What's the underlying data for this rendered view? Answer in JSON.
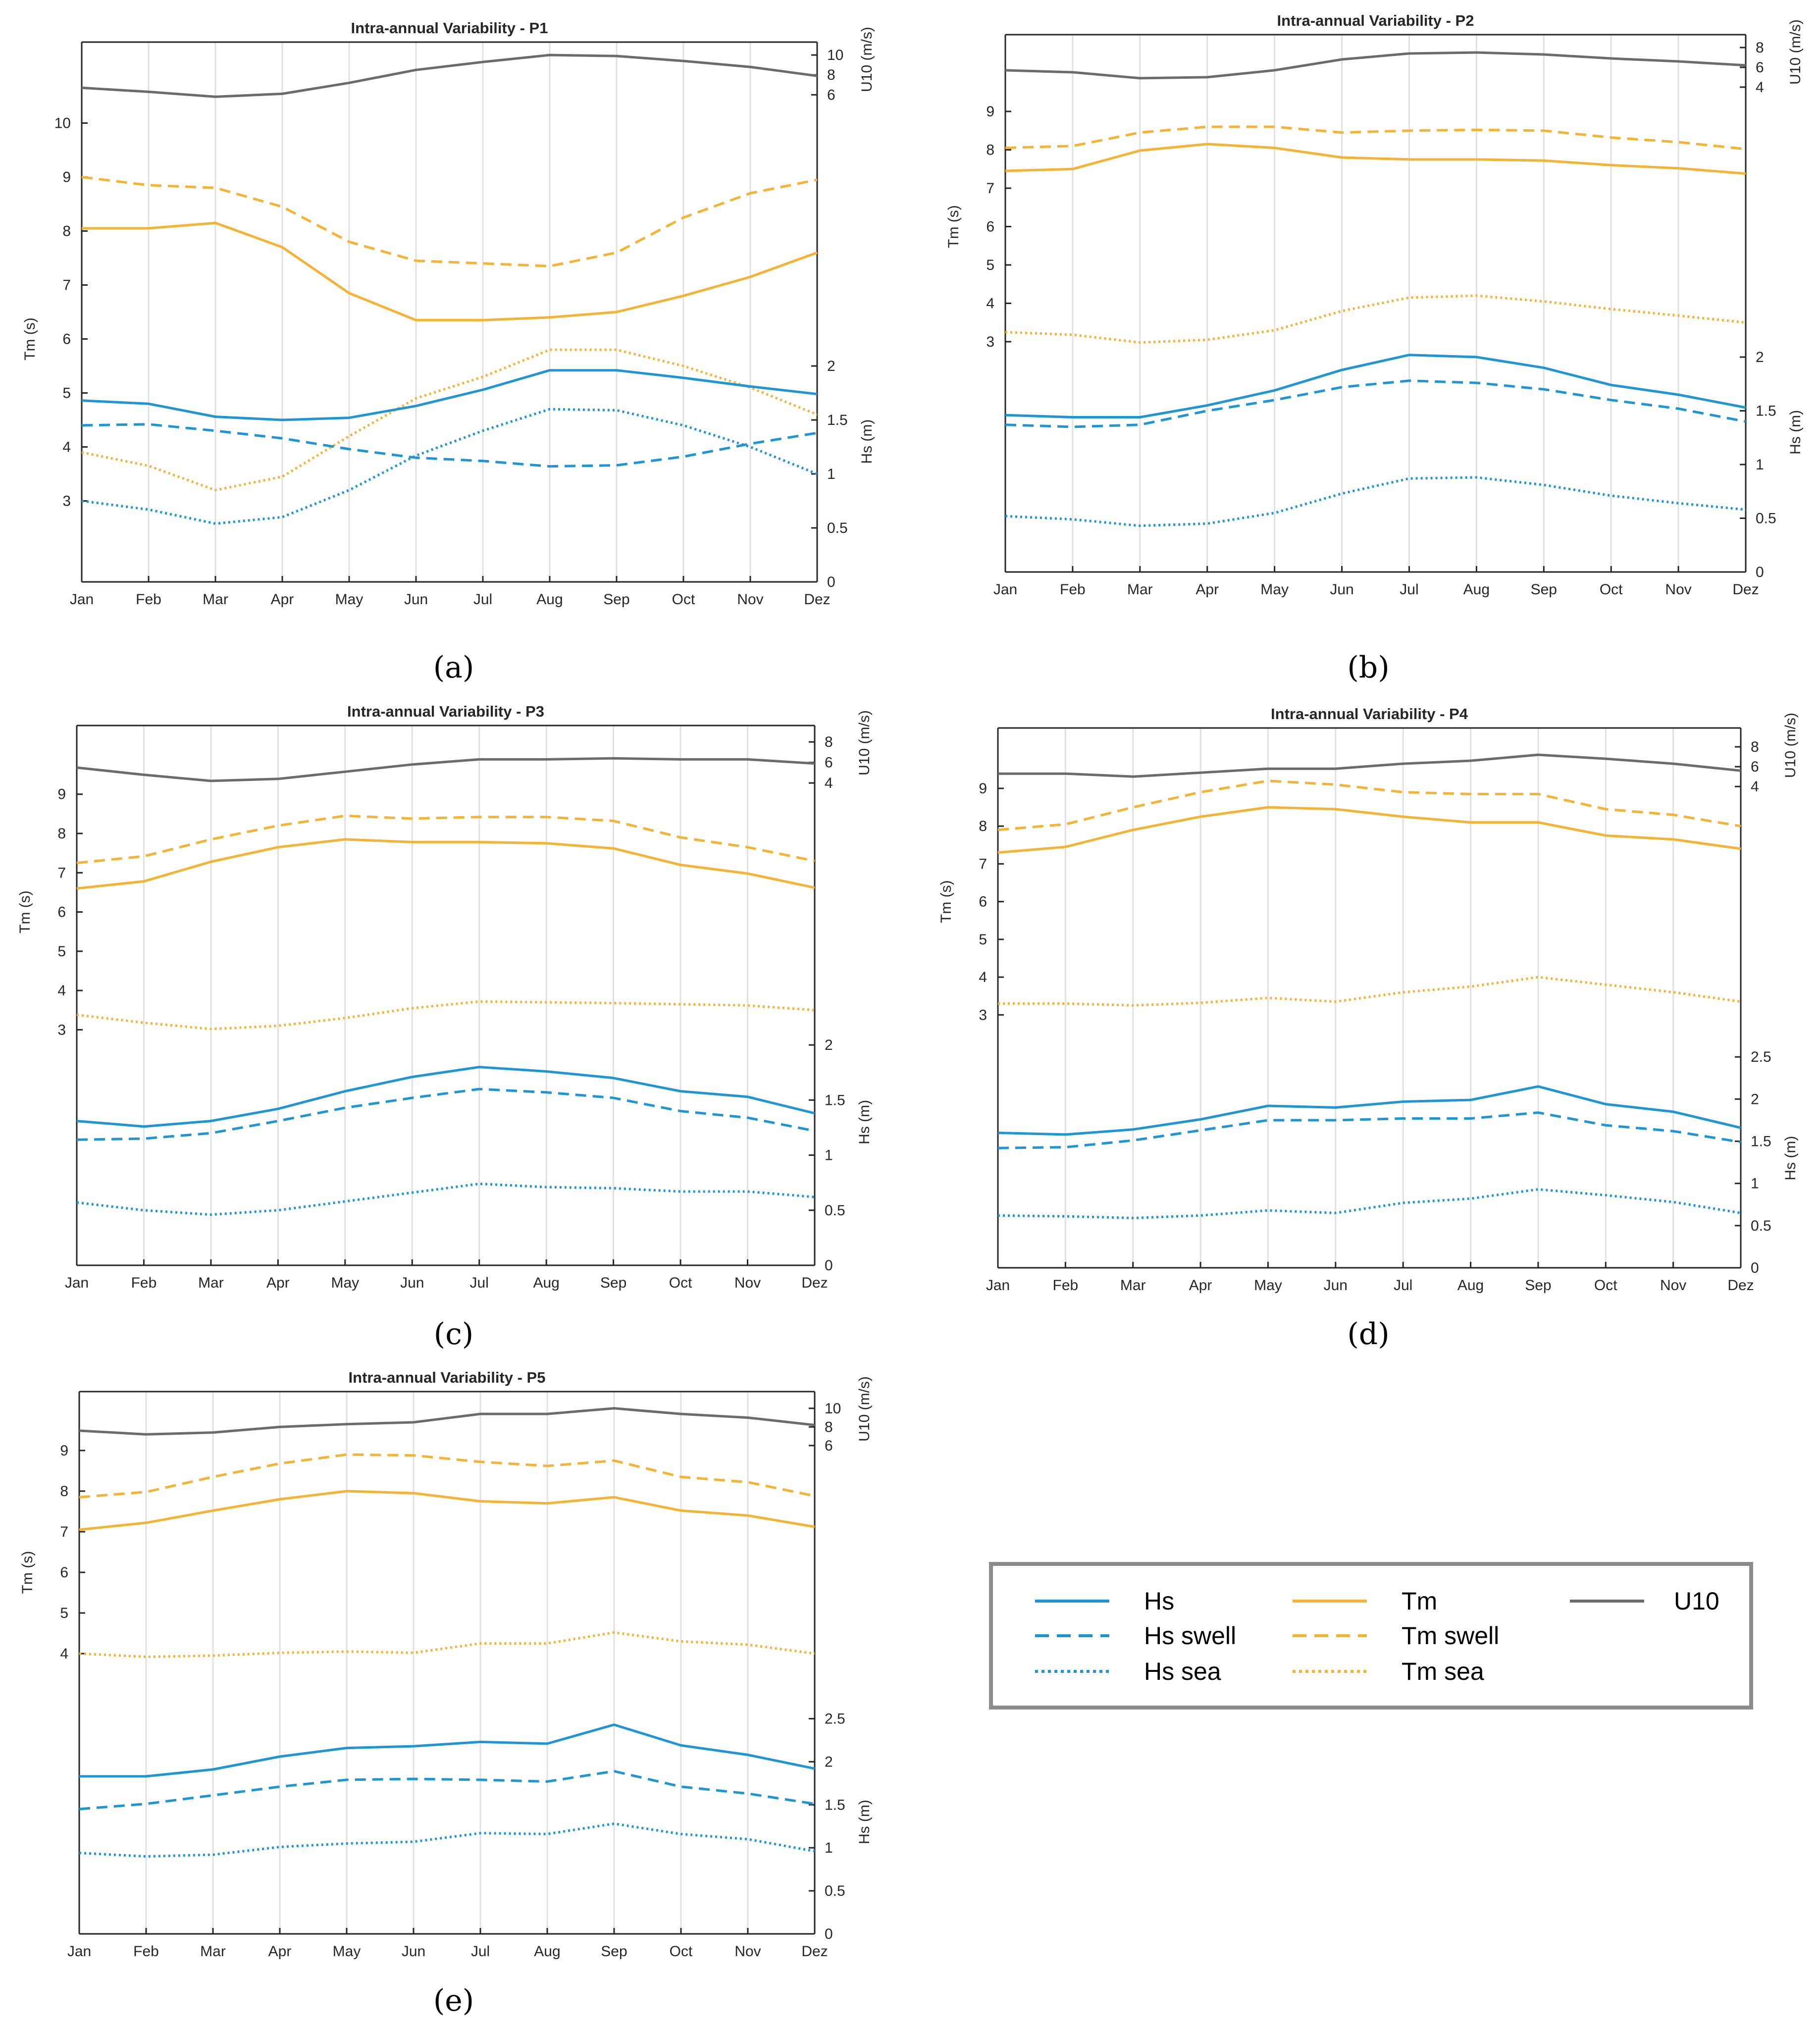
{
  "chart_data": [
    {
      "panel": "(a)",
      "type": "line",
      "title": "Intra-annual Variability - P1",
      "categories": [
        "Jan",
        "Feb",
        "Mar",
        "Apr",
        "May",
        "Jun",
        "Jul",
        "Aug",
        "Sep",
        "Oct",
        "Nov",
        "Dez"
      ],
      "ylabel_tm": "Tm (s)",
      "ylabel_hs": "Hs (m)",
      "ylabel_u10": "U10 (m/s)",
      "tm_ticks": [
        "3",
        "4",
        "5",
        "6",
        "7",
        "8",
        "9",
        "10"
      ],
      "hs_ticks": [
        "0",
        "0.5",
        "1",
        "1.5",
        "2"
      ],
      "u10_ticks": [
        "6",
        "8",
        "10"
      ],
      "tm_axis": {
        "min": 1.5,
        "max": 11.5
      },
      "hs_axis": {
        "min": 0,
        "max": 5
      },
      "u10_axis": {
        "min": -43,
        "max": 11.3
      },
      "series": [
        {
          "name": "U10",
          "axis": "u10",
          "values": [
            6.7,
            6.3,
            5.8,
            6.1,
            7.2,
            8.5,
            9.3,
            10.0,
            9.9,
            9.4,
            8.8,
            7.9
          ]
        },
        {
          "name": "Tm swell",
          "axis": "tm",
          "values": [
            9.0,
            8.85,
            8.8,
            8.45,
            7.8,
            7.45,
            7.4,
            7.35,
            7.6,
            8.25,
            8.7,
            8.95
          ]
        },
        {
          "name": "Tm",
          "axis": "tm",
          "values": [
            8.05,
            8.05,
            8.15,
            7.7,
            6.85,
            6.35,
            6.35,
            6.4,
            6.5,
            6.8,
            7.15,
            7.6
          ]
        },
        {
          "name": "Tm sea",
          "axis": "tm",
          "values": [
            3.9,
            3.65,
            3.2,
            3.45,
            4.2,
            4.9,
            5.3,
            5.8,
            5.8,
            5.5,
            5.1,
            4.6
          ]
        },
        {
          "name": "Hs",
          "axis": "hs",
          "values": [
            1.68,
            1.65,
            1.53,
            1.5,
            1.52,
            1.63,
            1.78,
            1.96,
            1.96,
            1.89,
            1.81,
            1.74
          ]
        },
        {
          "name": "Hs swell",
          "axis": "hs",
          "values": [
            1.45,
            1.46,
            1.4,
            1.33,
            1.23,
            1.15,
            1.12,
            1.07,
            1.08,
            1.16,
            1.28,
            1.38
          ]
        },
        {
          "name": "Hs sea",
          "axis": "hs",
          "values": [
            0.75,
            0.67,
            0.54,
            0.6,
            0.85,
            1.17,
            1.4,
            1.6,
            1.59,
            1.45,
            1.25,
            1.0
          ]
        }
      ]
    },
    {
      "panel": "(b)",
      "type": "line",
      "title": "Intra-annual Variability - P2",
      "categories": [
        "Jan",
        "Feb",
        "Mar",
        "Apr",
        "May",
        "Jun",
        "Jul",
        "Aug",
        "Sep",
        "Oct",
        "Nov",
        "Dez"
      ],
      "ylabel_tm": "Tm (s)",
      "ylabel_hs": "Hs (m)",
      "ylabel_u10": "U10 (m/s)",
      "tm_ticks": [
        "3",
        "4",
        "5",
        "6",
        "7",
        "8",
        "9"
      ],
      "hs_ticks": [
        "0",
        "0.5",
        "1",
        "1.5",
        "2"
      ],
      "u10_ticks": [
        "4",
        "6",
        "8"
      ],
      "tm_axis": {
        "min": -3,
        "max": 11
      },
      "hs_axis": {
        "min": 0,
        "max": 5
      },
      "u10_axis": {
        "min": -45,
        "max": 9.3
      },
      "series": [
        {
          "name": "U10",
          "axis": "u10",
          "values": [
            5.7,
            5.5,
            4.9,
            5.0,
            5.7,
            6.8,
            7.4,
            7.5,
            7.3,
            6.9,
            6.6,
            6.2
          ]
        },
        {
          "name": "Tm swell",
          "axis": "tm",
          "values": [
            8.05,
            8.1,
            8.45,
            8.6,
            8.6,
            8.45,
            8.5,
            8.52,
            8.5,
            8.32,
            8.2,
            8.02
          ]
        },
        {
          "name": "Tm",
          "axis": "tm",
          "values": [
            7.45,
            7.5,
            7.98,
            8.15,
            8.05,
            7.8,
            7.75,
            7.75,
            7.72,
            7.6,
            7.52,
            7.38
          ]
        },
        {
          "name": "Tm sea",
          "axis": "tm",
          "values": [
            3.25,
            3.18,
            2.98,
            3.05,
            3.3,
            3.8,
            4.15,
            4.2,
            4.05,
            3.85,
            3.68,
            3.5
          ]
        },
        {
          "name": "Hs",
          "axis": "hs",
          "values": [
            1.46,
            1.44,
            1.44,
            1.55,
            1.69,
            1.88,
            2.02,
            2.0,
            1.9,
            1.74,
            1.65,
            1.53
          ]
        },
        {
          "name": "Hs swell",
          "axis": "hs",
          "values": [
            1.37,
            1.35,
            1.37,
            1.5,
            1.6,
            1.72,
            1.78,
            1.76,
            1.7,
            1.6,
            1.52,
            1.4
          ]
        },
        {
          "name": "Hs sea",
          "axis": "hs",
          "values": [
            0.52,
            0.49,
            0.43,
            0.45,
            0.55,
            0.73,
            0.87,
            0.88,
            0.81,
            0.71,
            0.64,
            0.58
          ]
        }
      ]
    },
    {
      "panel": "(c)",
      "type": "line",
      "title": "Intra-annual Variability - P3",
      "categories": [
        "Jan",
        "Feb",
        "Mar",
        "Apr",
        "May",
        "Jun",
        "Jul",
        "Aug",
        "Sep",
        "Oct",
        "Nov",
        "Dez"
      ],
      "ylabel_tm": "Tm (s)",
      "ylabel_hs": "Hs (m)",
      "ylabel_u10": "U10 (m/s)",
      "tm_ticks": [
        "3",
        "4",
        "5",
        "6",
        "7",
        "8",
        "9"
      ],
      "hs_ticks": [
        "0",
        "0.5",
        "1",
        "1.5",
        "2"
      ],
      "u10_ticks": [
        "4",
        "6",
        "8"
      ],
      "tm_axis": {
        "min": -3,
        "max": 10.75
      },
      "hs_axis": {
        "min": 0,
        "max": 4.9
      },
      "u10_axis": {
        "min": -43,
        "max": 9.6
      },
      "series": [
        {
          "name": "U10",
          "axis": "u10",
          "values": [
            5.5,
            4.8,
            4.2,
            4.4,
            5.1,
            5.8,
            6.3,
            6.3,
            6.4,
            6.3,
            6.3,
            5.9
          ]
        },
        {
          "name": "Tm swell",
          "axis": "tm",
          "values": [
            7.25,
            7.42,
            7.85,
            8.2,
            8.45,
            8.38,
            8.42,
            8.42,
            8.32,
            7.9,
            7.65,
            7.3
          ]
        },
        {
          "name": "Tm",
          "axis": "tm",
          "values": [
            6.6,
            6.78,
            7.28,
            7.65,
            7.85,
            7.78,
            7.78,
            7.75,
            7.62,
            7.2,
            6.98,
            6.62
          ]
        },
        {
          "name": "Tm sea",
          "axis": "tm",
          "values": [
            3.38,
            3.18,
            3.02,
            3.1,
            3.3,
            3.55,
            3.72,
            3.7,
            3.68,
            3.65,
            3.62,
            3.5
          ]
        },
        {
          "name": "Hs",
          "axis": "hs",
          "values": [
            1.31,
            1.26,
            1.31,
            1.42,
            1.58,
            1.71,
            1.8,
            1.76,
            1.7,
            1.58,
            1.53,
            1.38
          ]
        },
        {
          "name": "Hs swell",
          "axis": "hs",
          "values": [
            1.14,
            1.15,
            1.2,
            1.31,
            1.43,
            1.52,
            1.6,
            1.57,
            1.52,
            1.4,
            1.34,
            1.22
          ]
        },
        {
          "name": "Hs sea",
          "axis": "hs",
          "values": [
            0.57,
            0.5,
            0.46,
            0.5,
            0.58,
            0.66,
            0.74,
            0.71,
            0.7,
            0.67,
            0.67,
            0.62
          ]
        }
      ]
    },
    {
      "panel": "(d)",
      "type": "line",
      "title": "Intra-annual Variability - P4",
      "categories": [
        "Jan",
        "Feb",
        "Mar",
        "Apr",
        "May",
        "Jun",
        "Jul",
        "Aug",
        "Sep",
        "Oct",
        "Nov",
        "Dez"
      ],
      "ylabel_tm": "Tm (s)",
      "ylabel_hs": "Hs (m)",
      "ylabel_u10": "U10 (m/s)",
      "tm_ticks": [
        "3",
        "4",
        "5",
        "6",
        "7",
        "8",
        "9"
      ],
      "hs_ticks": [
        "0",
        "0.5",
        "1",
        "1.5",
        "2",
        "2.5"
      ],
      "u10_ticks": [
        "4",
        "6",
        "8"
      ],
      "tm_axis": {
        "min": -3.7,
        "max": 10.6
      },
      "hs_axis": {
        "min": 0,
        "max": 6.4
      },
      "u10_axis": {
        "min": -44.5,
        "max": 9.9
      },
      "series": [
        {
          "name": "U10",
          "axis": "u10",
          "values": [
            5.3,
            5.3,
            5.0,
            5.4,
            5.8,
            5.8,
            6.3,
            6.6,
            7.2,
            6.8,
            6.3,
            5.6
          ]
        },
        {
          "name": "Tm swell",
          "axis": "tm",
          "values": [
            7.9,
            8.05,
            8.5,
            8.9,
            9.2,
            9.1,
            8.9,
            8.85,
            8.85,
            8.45,
            8.3,
            8.0
          ]
        },
        {
          "name": "Tm",
          "axis": "tm",
          "values": [
            7.3,
            7.45,
            7.9,
            8.25,
            8.5,
            8.45,
            8.25,
            8.1,
            8.1,
            7.75,
            7.65,
            7.4
          ]
        },
        {
          "name": "Tm sea",
          "axis": "tm",
          "values": [
            3.3,
            3.3,
            3.25,
            3.32,
            3.45,
            3.35,
            3.6,
            3.75,
            4.0,
            3.8,
            3.6,
            3.35
          ]
        },
        {
          "name": "Hs",
          "axis": "hs",
          "values": [
            1.6,
            1.58,
            1.64,
            1.76,
            1.92,
            1.9,
            1.97,
            1.99,
            2.15,
            1.94,
            1.85,
            1.66
          ]
        },
        {
          "name": "Hs swell",
          "axis": "hs",
          "values": [
            1.42,
            1.43,
            1.51,
            1.63,
            1.75,
            1.75,
            1.77,
            1.77,
            1.84,
            1.69,
            1.62,
            1.49
          ]
        },
        {
          "name": "Hs sea",
          "axis": "hs",
          "values": [
            0.62,
            0.61,
            0.59,
            0.62,
            0.68,
            0.65,
            0.77,
            0.82,
            0.93,
            0.86,
            0.78,
            0.65
          ]
        }
      ]
    },
    {
      "panel": "(e)",
      "type": "line",
      "title": "Intra-annual Variability - P5",
      "categories": [
        "Jan",
        "Feb",
        "Mar",
        "Apr",
        "May",
        "Jun",
        "Jul",
        "Aug",
        "Sep",
        "Oct",
        "Nov",
        "Dez"
      ],
      "ylabel_tm": "Tm (s)",
      "ylabel_hs": "Hs (m)",
      "ylabel_u10": "U10 (m/s)",
      "tm_ticks": [
        "4",
        "5",
        "6",
        "7",
        "8",
        "9"
      ],
      "hs_ticks": [
        "0",
        "0.5",
        "1",
        "1.5",
        "2",
        "2.5"
      ],
      "u10_ticks": [
        "6",
        "8",
        "10"
      ],
      "tm_axis": {
        "min": -2.9,
        "max": 10.45
      },
      "hs_axis": {
        "min": 0,
        "max": 6.3
      },
      "u10_axis": {
        "min": -46.5,
        "max": 11.8
      },
      "series": [
        {
          "name": "U10",
          "axis": "u10",
          "values": [
            7.6,
            7.2,
            7.4,
            8.0,
            8.3,
            8.5,
            9.4,
            9.4,
            10.0,
            9.4,
            9.0,
            8.2
          ]
        },
        {
          "name": "Tm swell",
          "axis": "tm",
          "values": [
            7.85,
            7.98,
            8.35,
            8.68,
            8.9,
            8.88,
            8.72,
            8.62,
            8.75,
            8.35,
            8.22,
            7.88
          ]
        },
        {
          "name": "Tm",
          "axis": "tm",
          "values": [
            7.05,
            7.22,
            7.52,
            7.8,
            8.0,
            7.95,
            7.75,
            7.7,
            7.85,
            7.52,
            7.4,
            7.12
          ]
        },
        {
          "name": "Tm sea",
          "axis": "tm",
          "values": [
            4.0,
            3.92,
            3.95,
            4.02,
            4.05,
            4.02,
            4.25,
            4.25,
            4.52,
            4.3,
            4.22,
            4.0
          ]
        },
        {
          "name": "Hs",
          "axis": "hs",
          "values": [
            1.83,
            1.83,
            1.91,
            2.06,
            2.16,
            2.18,
            2.23,
            2.21,
            2.43,
            2.19,
            2.08,
            1.92
          ]
        },
        {
          "name": "Hs swell",
          "axis": "hs",
          "values": [
            1.45,
            1.51,
            1.61,
            1.71,
            1.79,
            1.8,
            1.79,
            1.77,
            1.89,
            1.71,
            1.63,
            1.51
          ]
        },
        {
          "name": "Hs sea",
          "axis": "hs",
          "values": [
            0.94,
            0.9,
            0.92,
            1.01,
            1.05,
            1.07,
            1.17,
            1.16,
            1.28,
            1.16,
            1.1,
            0.96
          ]
        }
      ]
    }
  ],
  "series_styles": [
    {
      "name": "U10",
      "color": "#6b6b6b",
      "dash": "solid"
    },
    {
      "name": "Tm swell",
      "color": "#f5b335",
      "dash": "dashed"
    },
    {
      "name": "Tm",
      "color": "#f5b335",
      "dash": "solid"
    },
    {
      "name": "Tm sea",
      "color": "#f5b335",
      "dash": "dotted"
    },
    {
      "name": "Hs",
      "color": "#1f96d3",
      "dash": "solid"
    },
    {
      "name": "Hs swell",
      "color": "#1f96d3",
      "dash": "dashed"
    },
    {
      "name": "Hs sea",
      "color": "#1f96d3",
      "dash": "dotted"
    }
  ],
  "legend": {
    "items": [
      {
        "label": "Hs",
        "color": "#1f96d3",
        "dash": "solid"
      },
      {
        "label": "Hs swell",
        "color": "#1f96d3",
        "dash": "dashed"
      },
      {
        "label": "Hs sea",
        "color": "#1f96d3",
        "dash": "dotted"
      },
      {
        "label": "Tm",
        "color": "#f5b335",
        "dash": "solid"
      },
      {
        "label": "Tm swell",
        "color": "#f5b335",
        "dash": "dashed"
      },
      {
        "label": "Tm sea",
        "color": "#f5b335",
        "dash": "dotted"
      },
      {
        "label": "U10",
        "color": "#6b6b6b",
        "dash": "solid"
      }
    ]
  },
  "captions": [
    "(a)",
    "(b)",
    "(c)",
    "(d)",
    "(e)"
  ]
}
